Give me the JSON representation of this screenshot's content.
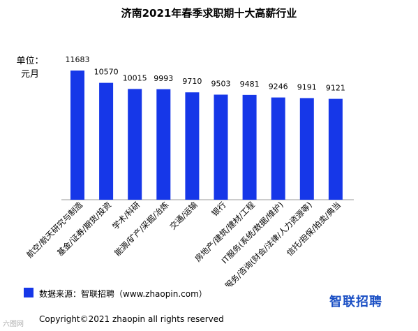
{
  "chart_data": {
    "type": "bar",
    "title": "济南2021年春季求职期十大高薪行业",
    "ylabel": "单位：元月",
    "categories": [
      "航空/航天研究与制造",
      "基金/证券/期货/投资",
      "学术/科研",
      "能源/矿产/采掘/冶炼",
      "交通/运输",
      "银行",
      "房地产/建筑/建材/工程",
      "IT服务(系统/数据/维护)",
      "专业服务/咨询(财会/法律/人力资源等)",
      "信托/担保/拍卖/典当"
    ],
    "values": [
      11683,
      10570,
      10015,
      9993,
      9710,
      9503,
      9481,
      9246,
      9191,
      9121
    ],
    "data_labels": [
      "11683",
      "10570",
      "10015",
      "9993",
      "9710",
      "9503",
      "9481",
      "9246",
      "9191",
      "9121"
    ],
    "bar_color": "#1637e8",
    "ylim": [
      0,
      11683
    ],
    "grid": false,
    "legend": "none"
  },
  "footer": {
    "source": "数据来源：智联招聘（www.zhaopin.com）",
    "copyright": "Copyright©2021 zhaopin all rights reserved",
    "logo": "智联招聘",
    "watermark": "六图网"
  }
}
